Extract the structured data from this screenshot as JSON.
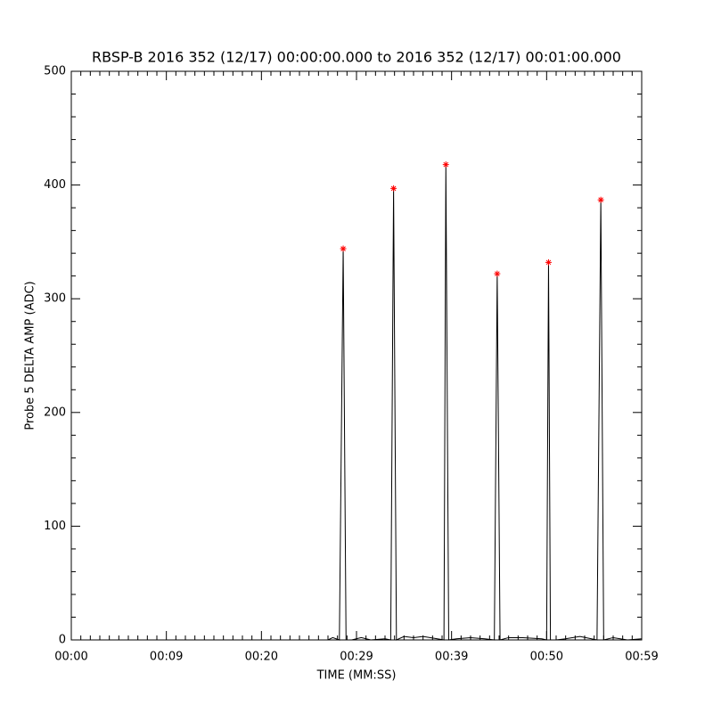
{
  "chart_data": {
    "type": "line",
    "title": "RBSP-B 2016 352 (12/17) 00:00:00.000 to 2016 352 (12/17) 00:01:00.000",
    "x_label": "TIME (MM:SS)",
    "y_label": "Probe 5 DELTA AMP (ADC)",
    "xlim": [
      0,
      60
    ],
    "xticks": [
      {
        "value": 0,
        "label": "00:00"
      },
      {
        "value": 10,
        "label": "00:09"
      },
      {
        "value": 20,
        "label": "00:20"
      },
      {
        "value": 30,
        "label": "00:29"
      },
      {
        "value": 40,
        "label": "00:39"
      },
      {
        "value": 50,
        "label": "00:50"
      },
      {
        "value": 60,
        "label": "00:59"
      }
    ],
    "ylim": [
      0,
      500
    ],
    "yticks": [
      0,
      100,
      200,
      300,
      400,
      500
    ],
    "series": [
      {
        "color": "#000000",
        "x": [
          0,
          27.0,
          27.5,
          28.2,
          28.6,
          28.9,
          29.5,
          30.5,
          31.5,
          33.0,
          33.6,
          33.9,
          34.2,
          35,
          36,
          37,
          38.5,
          39.2,
          39.4,
          39.7,
          40.5,
          42,
          43.5,
          44.5,
          44.8,
          45.1,
          46,
          47.5,
          49.5,
          50.0,
          50.2,
          50.4,
          51,
          52,
          53.5,
          55.3,
          55.7,
          56.0,
          57,
          58.5,
          60
        ],
        "values": [
          0,
          0,
          2,
          0,
          344,
          0,
          0,
          2,
          0,
          1,
          0,
          397,
          0,
          3,
          2,
          3,
          1,
          0,
          418,
          0,
          1,
          2,
          1,
          0,
          322,
          0,
          2,
          2,
          1,
          0,
          332,
          0,
          0,
          1,
          3,
          0,
          387,
          0,
          2,
          0,
          1
        ]
      },
      {
        "color": "#ff0000",
        "marker": "asterisk",
        "x": [
          28.6,
          33.9,
          39.4,
          44.8,
          50.2,
          55.7
        ],
        "values": [
          344,
          397,
          418,
          322,
          332,
          387
        ]
      }
    ]
  }
}
